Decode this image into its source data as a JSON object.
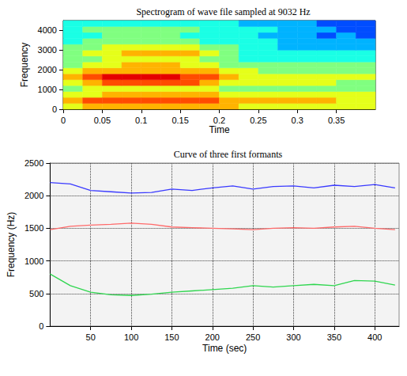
{
  "chart_data": [
    {
      "type": "heatmap",
      "title": "Spectrogram of wave file sampled at 9032 Hz",
      "x_label": "Time",
      "y_label": "Frequency",
      "x_bins": [
        0,
        0.025,
        0.05,
        0.075,
        0.1,
        0.125,
        0.15,
        0.175,
        0.2,
        0.225,
        0.25,
        0.275,
        0.3,
        0.325,
        0.35,
        0.375,
        0.4
      ],
      "y_bins": [
        0,
        300,
        600,
        900,
        1200,
        1500,
        1800,
        2100,
        2400,
        2700,
        3000,
        3300,
        3600,
        3900,
        4200,
        4500
      ],
      "cells": [
        [
          6,
          7,
          7,
          7,
          7,
          7,
          7,
          7,
          7,
          6,
          6,
          6,
          6,
          6,
          6,
          6
        ],
        [
          7,
          8,
          8,
          8,
          8,
          8,
          8,
          8,
          7,
          7,
          7,
          7,
          7,
          7,
          6,
          6
        ],
        [
          6,
          6,
          7,
          7,
          7,
          7,
          7,
          7,
          6,
          6,
          6,
          6,
          6,
          6,
          6,
          6
        ],
        [
          5,
          6,
          6,
          6,
          6,
          6,
          6,
          6,
          5,
          5,
          5,
          5,
          5,
          5,
          5,
          5
        ],
        [
          6,
          7,
          8,
          8,
          8,
          8,
          8,
          7,
          6,
          6,
          6,
          6,
          6,
          6,
          5,
          5
        ],
        [
          7,
          8,
          9,
          9,
          9,
          9,
          8,
          8,
          7,
          6,
          6,
          6,
          6,
          6,
          6,
          6
        ],
        [
          6,
          7,
          7,
          7,
          7,
          7,
          7,
          7,
          6,
          6,
          5,
          5,
          5,
          5,
          5,
          5
        ],
        [
          5,
          6,
          6,
          7,
          7,
          7,
          6,
          6,
          5,
          5,
          5,
          5,
          5,
          5,
          5,
          5
        ],
        [
          5,
          5,
          6,
          6,
          6,
          6,
          6,
          5,
          5,
          4,
          4,
          4,
          4,
          4,
          4,
          4
        ],
        [
          5,
          6,
          6,
          7,
          7,
          7,
          7,
          6,
          5,
          4,
          4,
          4,
          4,
          4,
          4,
          4
        ],
        [
          5,
          5,
          6,
          6,
          6,
          6,
          6,
          5,
          5,
          4,
          4,
          3,
          3,
          3,
          3,
          3
        ],
        [
          4,
          5,
          5,
          5,
          5,
          5,
          5,
          4,
          4,
          4,
          4,
          3,
          3,
          3,
          3,
          3
        ],
        [
          4,
          4,
          5,
          5,
          5,
          5,
          4,
          4,
          4,
          4,
          3,
          3,
          3,
          2,
          3,
          2
        ],
        [
          4,
          5,
          5,
          5,
          5,
          5,
          5,
          4,
          4,
          4,
          4,
          3,
          3,
          3,
          2,
          2
        ],
        [
          4,
          4,
          4,
          4,
          4,
          4,
          4,
          4,
          4,
          3,
          3,
          3,
          3,
          2,
          2,
          2
        ]
      ],
      "value_range": [
        0,
        10
      ],
      "xlim": [
        0,
        0.4
      ],
      "xticks": [
        0,
        0.05,
        0.1,
        0.15,
        0.2,
        0.25,
        0.3,
        0.35
      ],
      "ylim": [
        0,
        4500
      ],
      "yticks": [
        0,
        1000,
        2000,
        3000,
        4000
      ],
      "grid": false
    },
    {
      "type": "line",
      "title": "Curve of three first formants",
      "x_label": "Time (sec)",
      "y_label": "Frequency (Hz)",
      "x": [
        0,
        25,
        50,
        75,
        100,
        125,
        150,
        175,
        200,
        225,
        250,
        275,
        300,
        325,
        350,
        375,
        400,
        425
      ],
      "series": [
        {
          "color": "#3a3aff",
          "values": [
            2200,
            2180,
            2080,
            2060,
            2040,
            2050,
            2100,
            2080,
            2120,
            2150,
            2100,
            2140,
            2150,
            2120,
            2160,
            2140,
            2170,
            2120
          ]
        },
        {
          "color": "#ff6a6a",
          "values": [
            1480,
            1530,
            1550,
            1560,
            1580,
            1560,
            1520,
            1510,
            1500,
            1490,
            1480,
            1500,
            1510,
            1500,
            1520,
            1530,
            1500,
            1480
          ]
        },
        {
          "color": "#2fd64f",
          "values": [
            800,
            620,
            520,
            480,
            470,
            490,
            520,
            540,
            560,
            580,
            620,
            600,
            620,
            640,
            620,
            700,
            690,
            630
          ]
        }
      ],
      "xlim": [
        0,
        430
      ],
      "xticks": [
        50,
        100,
        150,
        200,
        250,
        300,
        350,
        400
      ],
      "ylim": [
        0,
        2500
      ],
      "yticks": [
        0,
        500,
        1000,
        1500,
        2000,
        2500
      ],
      "grid": true
    }
  ]
}
